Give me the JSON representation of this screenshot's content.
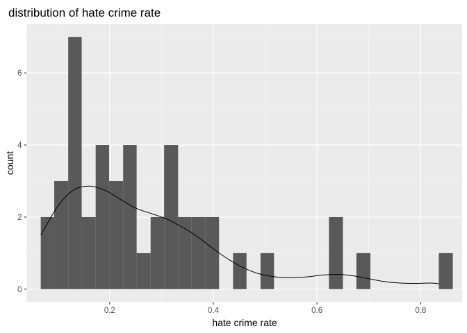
{
  "chart_data": {
    "type": "bar",
    "title": "distribution of hate crime rate",
    "xlabel": "hate crime rate",
    "ylabel": "count",
    "xlim": [
      0.04,
      0.88
    ],
    "ylim": [
      -0.35,
      7.35
    ],
    "x_ticks": [
      0.2,
      0.4,
      0.6,
      0.8
    ],
    "x_tick_labels": [
      "0.2",
      "0.4",
      "0.6",
      "0.8"
    ],
    "y_ticks": [
      0,
      2,
      4,
      6
    ],
    "y_tick_labels": [
      "0",
      "2",
      "4",
      "6"
    ],
    "grid": true,
    "bins": [
      {
        "x0": 0.067,
        "x1": 0.093,
        "count": 2
      },
      {
        "x0": 0.093,
        "x1": 0.12,
        "count": 3
      },
      {
        "x0": 0.12,
        "x1": 0.146,
        "count": 7
      },
      {
        "x0": 0.146,
        "x1": 0.173,
        "count": 2
      },
      {
        "x0": 0.173,
        "x1": 0.199,
        "count": 4
      },
      {
        "x0": 0.199,
        "x1": 0.226,
        "count": 3
      },
      {
        "x0": 0.226,
        "x1": 0.252,
        "count": 4
      },
      {
        "x0": 0.252,
        "x1": 0.279,
        "count": 1
      },
      {
        "x0": 0.279,
        "x1": 0.305,
        "count": 2
      },
      {
        "x0": 0.305,
        "x1": 0.332,
        "count": 4
      },
      {
        "x0": 0.332,
        "x1": 0.358,
        "count": 2
      },
      {
        "x0": 0.358,
        "x1": 0.385,
        "count": 2
      },
      {
        "x0": 0.385,
        "x1": 0.411,
        "count": 2
      },
      {
        "x0": 0.411,
        "x1": 0.438,
        "count": 0
      },
      {
        "x0": 0.438,
        "x1": 0.464,
        "count": 1
      },
      {
        "x0": 0.464,
        "x1": 0.491,
        "count": 0
      },
      {
        "x0": 0.491,
        "x1": 0.517,
        "count": 1
      },
      {
        "x0": 0.517,
        "x1": 0.544,
        "count": 0
      },
      {
        "x0": 0.544,
        "x1": 0.57,
        "count": 0
      },
      {
        "x0": 0.57,
        "x1": 0.597,
        "count": 0
      },
      {
        "x0": 0.597,
        "x1": 0.623,
        "count": 0
      },
      {
        "x0": 0.623,
        "x1": 0.65,
        "count": 2
      },
      {
        "x0": 0.65,
        "x1": 0.676,
        "count": 0
      },
      {
        "x0": 0.676,
        "x1": 0.703,
        "count": 1
      },
      {
        "x0": 0.703,
        "x1": 0.729,
        "count": 0
      },
      {
        "x0": 0.729,
        "x1": 0.756,
        "count": 0
      },
      {
        "x0": 0.756,
        "x1": 0.782,
        "count": 0
      },
      {
        "x0": 0.782,
        "x1": 0.809,
        "count": 0
      },
      {
        "x0": 0.809,
        "x1": 0.835,
        "count": 0
      },
      {
        "x0": 0.835,
        "x1": 0.862,
        "count": 1
      }
    ],
    "density_line": [
      {
        "x": 0.067,
        "y": 1.5
      },
      {
        "x": 0.1,
        "y": 2.3
      },
      {
        "x": 0.13,
        "y": 2.75
      },
      {
        "x": 0.16,
        "y": 2.86
      },
      {
        "x": 0.19,
        "y": 2.75
      },
      {
        "x": 0.22,
        "y": 2.5
      },
      {
        "x": 0.25,
        "y": 2.25
      },
      {
        "x": 0.28,
        "y": 2.1
      },
      {
        "x": 0.31,
        "y": 1.95
      },
      {
        "x": 0.34,
        "y": 1.72
      },
      {
        "x": 0.37,
        "y": 1.45
      },
      {
        "x": 0.4,
        "y": 1.12
      },
      {
        "x": 0.43,
        "y": 0.82
      },
      {
        "x": 0.46,
        "y": 0.58
      },
      {
        "x": 0.49,
        "y": 0.42
      },
      {
        "x": 0.52,
        "y": 0.34
      },
      {
        "x": 0.55,
        "y": 0.32
      },
      {
        "x": 0.58,
        "y": 0.34
      },
      {
        "x": 0.61,
        "y": 0.39
      },
      {
        "x": 0.64,
        "y": 0.41
      },
      {
        "x": 0.67,
        "y": 0.37
      },
      {
        "x": 0.7,
        "y": 0.29
      },
      {
        "x": 0.73,
        "y": 0.21
      },
      {
        "x": 0.76,
        "y": 0.17
      },
      {
        "x": 0.79,
        "y": 0.16
      },
      {
        "x": 0.82,
        "y": 0.17
      },
      {
        "x": 0.835,
        "y": 0.15
      }
    ],
    "colors": {
      "panel_background": "#ebebeb",
      "grid_major": "#ffffff",
      "grid_minor": "#f5f5f5",
      "bar_fill": "#595959",
      "density_line": "#000000"
    }
  }
}
